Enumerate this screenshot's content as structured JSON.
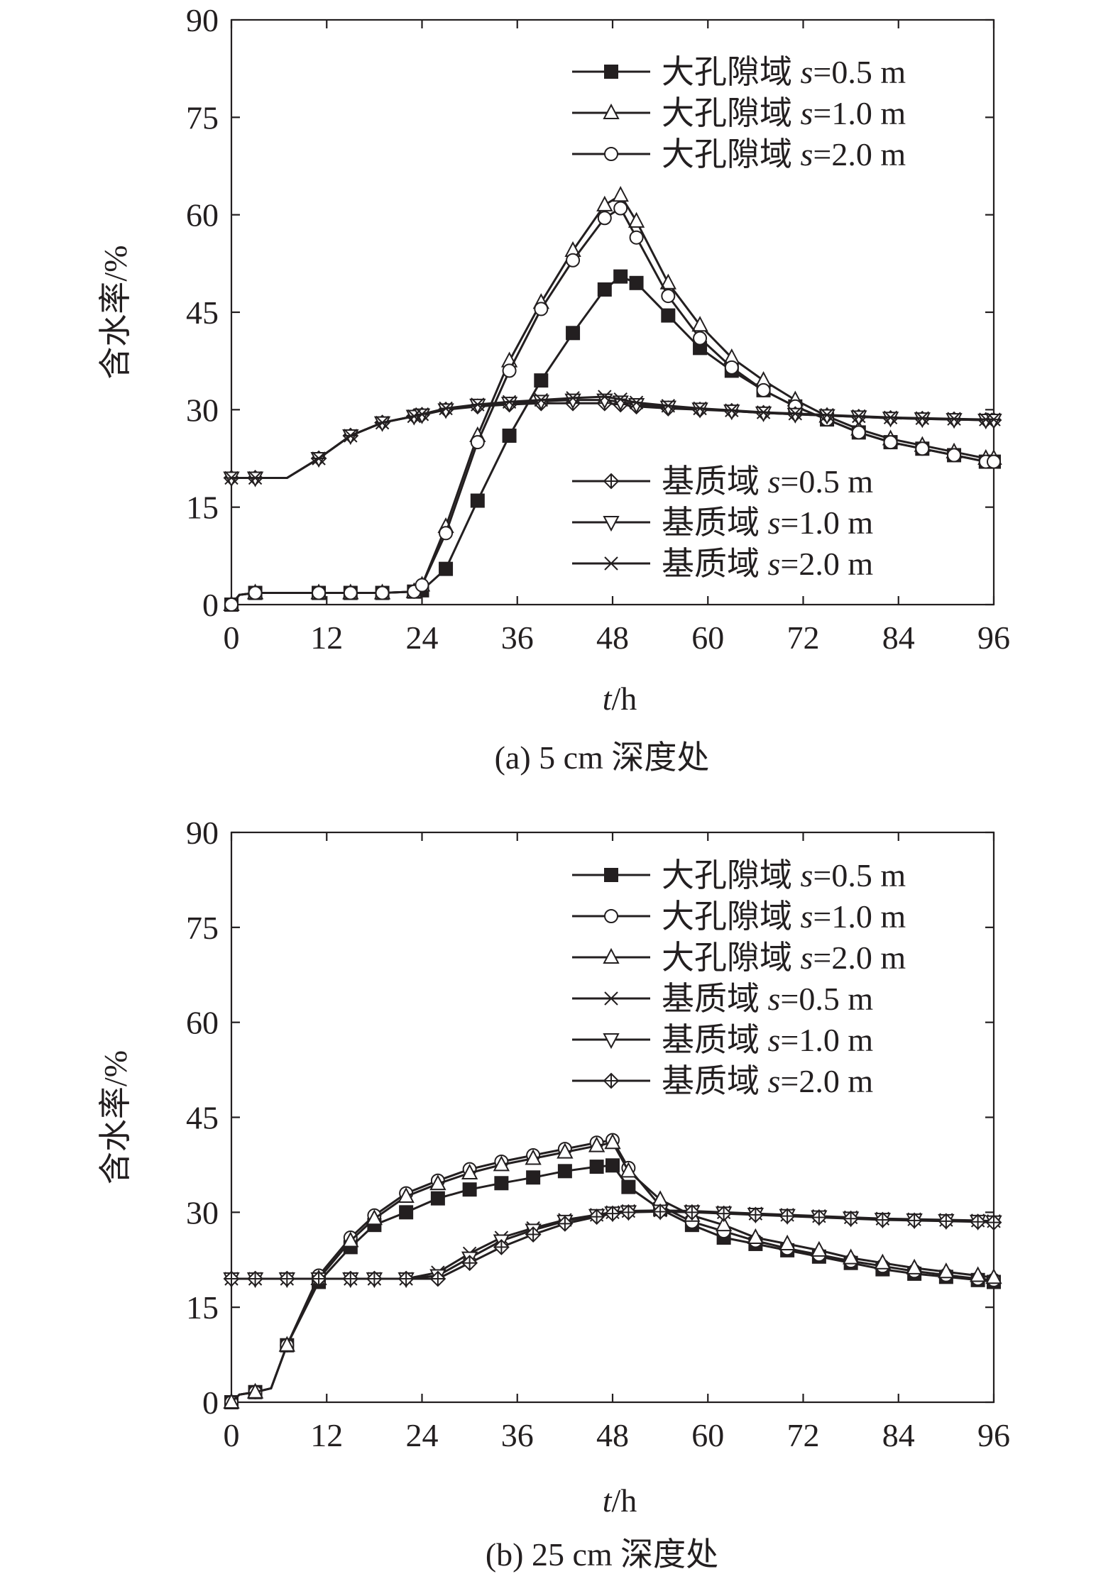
{
  "chart_data": [
    {
      "type": "line",
      "caption": "(a) 5 cm 深度处",
      "xlabel": {
        "italic": "t",
        "rest": "/h"
      },
      "ylabel": "含水率/%",
      "xlim": [
        0,
        96
      ],
      "ylim": [
        0,
        90
      ],
      "xticks": [
        0,
        12,
        24,
        36,
        48,
        60,
        72,
        84,
        96
      ],
      "yticks": [
        0,
        15,
        30,
        45,
        60,
        75,
        90
      ],
      "legends": [
        {
          "position": "top-right",
          "entries": [
            0,
            1,
            2
          ]
        },
        {
          "position": "bottom-right",
          "entries": [
            3,
            4,
            5
          ]
        }
      ],
      "x": [
        0,
        1,
        3,
        7,
        11,
        15,
        19,
        23,
        24,
        27,
        31,
        35,
        39,
        43,
        47,
        49,
        51,
        55,
        59,
        63,
        67,
        71,
        75,
        79,
        83,
        87,
        91,
        95,
        96
      ],
      "series": [
        {
          "name": {
            "prefix": "大孔隙域 ",
            "italic": "s",
            "suffix": "=0.5 m"
          },
          "marker": "filled-square",
          "values": [
            0,
            1.5,
            1.8,
            1.8,
            1.8,
            1.8,
            1.8,
            2.0,
            2.2,
            5.5,
            16,
            26,
            34.5,
            41.8,
            48.5,
            50.5,
            49.5,
            44.5,
            39.5,
            36,
            33,
            30.5,
            28.5,
            26.5,
            25,
            24,
            23,
            22,
            22
          ]
        },
        {
          "name": {
            "prefix": "大孔隙域 ",
            "italic": "s",
            "suffix": "=1.0 m"
          },
          "marker": "open-triangle-up",
          "values": [
            0,
            1.5,
            1.8,
            1.8,
            1.8,
            1.8,
            1.8,
            2.0,
            3,
            12,
            26,
            37.5,
            46.5,
            54.5,
            61.5,
            63,
            59,
            49.5,
            43,
            38,
            34.5,
            31.5,
            29,
            27,
            25.5,
            24.5,
            23.5,
            22.5,
            22.5
          ]
        },
        {
          "name": {
            "prefix": "大孔隙域 ",
            "italic": "s",
            "suffix": "=2.0 m"
          },
          "marker": "open-circle",
          "values": [
            0,
            1.5,
            1.8,
            1.8,
            1.8,
            1.8,
            1.8,
            2.0,
            3,
            11,
            25,
            36,
            45.5,
            53,
            59.5,
            61,
            56.5,
            47.5,
            41,
            36.5,
            33,
            30.5,
            28.5,
            26.5,
            25,
            24,
            23,
            22,
            22
          ]
        },
        {
          "name": {
            "prefix": "基质域 ",
            "italic": "s",
            "suffix": "=0.5 m"
          },
          "marker": "open-diamond-cross",
          "values": [
            19.5,
            19.5,
            19.5,
            19.5,
            22.5,
            26,
            28,
            29,
            29.2,
            30,
            30.5,
            30.8,
            31,
            31,
            31,
            30.8,
            30.5,
            30.2,
            30,
            29.8,
            29.5,
            29.3,
            29.1,
            28.9,
            28.7,
            28.6,
            28.5,
            28.4,
            28.4
          ]
        },
        {
          "name": {
            "prefix": "基质域 ",
            "italic": "s",
            "suffix": "=1.0 m"
          },
          "marker": "open-triangle-down",
          "values": [
            19.5,
            19.5,
            19.5,
            19.5,
            22.5,
            26,
            28,
            29,
            29.2,
            30,
            30.7,
            31,
            31.3,
            31.5,
            31.5,
            31.2,
            30.8,
            30.4,
            30.1,
            29.8,
            29.5,
            29.3,
            29.1,
            28.9,
            28.7,
            28.6,
            28.5,
            28.4,
            28.4
          ]
        },
        {
          "name": {
            "prefix": "基质域 ",
            "italic": "s",
            "suffix": "=2.0 m"
          },
          "marker": "x-star",
          "values": [
            19.5,
            19.5,
            19.5,
            19.5,
            22.5,
            26,
            28,
            29,
            29.3,
            30.2,
            30.8,
            31.2,
            31.5,
            31.8,
            32,
            31.6,
            31.1,
            30.6,
            30.2,
            29.9,
            29.6,
            29.4,
            29.2,
            29,
            28.8,
            28.7,
            28.6,
            28.5,
            28.5
          ]
        }
      ]
    },
    {
      "type": "line",
      "caption": "(b) 25 cm 深度处",
      "xlabel": {
        "italic": "t",
        "rest": "/h"
      },
      "ylabel": "含水率/%",
      "xlim": [
        0,
        96
      ],
      "ylim": [
        0,
        90
      ],
      "xticks": [
        0,
        12,
        24,
        36,
        48,
        60,
        72,
        84,
        96
      ],
      "yticks": [
        0,
        15,
        30,
        45,
        60,
        75,
        90
      ],
      "legends": [
        {
          "position": "top-right",
          "entries": [
            0,
            1,
            2,
            3,
            4,
            5
          ]
        }
      ],
      "x": [
        0,
        1,
        3,
        5,
        7,
        11,
        15,
        18,
        22,
        26,
        30,
        34,
        38,
        42,
        46,
        48,
        50,
        54,
        58,
        62,
        66,
        70,
        74,
        78,
        82,
        86,
        90,
        94,
        96
      ],
      "series": [
        {
          "name": {
            "prefix": "大孔隙域 ",
            "italic": "s",
            "suffix": "=0.5 m"
          },
          "marker": "filled-square",
          "values": [
            0,
            1.2,
            1.6,
            2.2,
            9,
            19,
            24.5,
            28,
            30,
            32.2,
            33.6,
            34.6,
            35.5,
            36.5,
            37.2,
            37.4,
            34,
            30.5,
            28,
            26,
            25,
            24,
            23,
            22,
            21,
            20.3,
            19.8,
            19.3,
            19
          ]
        },
        {
          "name": {
            "prefix": "大孔隙域 ",
            "italic": "s",
            "suffix": "=1.0 m"
          },
          "marker": "open-circle",
          "values": [
            0,
            1.2,
            1.6,
            2.2,
            9,
            20,
            26,
            29.5,
            33,
            35,
            36.8,
            38,
            39,
            40,
            41,
            41.4,
            37,
            31,
            28.5,
            27,
            25.5,
            24.3,
            23.3,
            22.3,
            21.5,
            20.7,
            20.1,
            19.5,
            19.3
          ]
        },
        {
          "name": {
            "prefix": "大孔隙域 ",
            "italic": "s",
            "suffix": "=2.0 m"
          },
          "marker": "open-triangle-up",
          "values": [
            0,
            1.2,
            1.6,
            2.2,
            9,
            19.5,
            25.5,
            29,
            32.5,
            34.5,
            36.2,
            37.5,
            38.5,
            39.5,
            40.5,
            41,
            36.5,
            32,
            29.5,
            28,
            26,
            25,
            24,
            22.8,
            22,
            21.2,
            20.6,
            20,
            19.7
          ]
        },
        {
          "name": {
            "prefix": "基质域 ",
            "italic": "s",
            "suffix": "=0.5 m"
          },
          "marker": "x-star",
          "values": [
            19.5,
            19.5,
            19.5,
            19.5,
            19.5,
            19.5,
            19.5,
            19.5,
            19.5,
            20.5,
            23.5,
            26,
            27.5,
            28.8,
            29.6,
            30,
            30.2,
            30.3,
            30.2,
            30,
            29.8,
            29.6,
            29.4,
            29.2,
            29,
            28.9,
            28.8,
            28.7,
            28.6
          ]
        },
        {
          "name": {
            "prefix": "基质域 ",
            "italic": "s",
            "suffix": "=1.0 m"
          },
          "marker": "open-triangle-down",
          "values": [
            19.5,
            19.5,
            19.5,
            19.5,
            19.5,
            19.5,
            19.5,
            19.5,
            19.5,
            20,
            22.8,
            25.5,
            27.2,
            28.6,
            29.5,
            29.9,
            30.1,
            30.2,
            30.1,
            29.9,
            29.7,
            29.5,
            29.3,
            29.1,
            28.9,
            28.8,
            28.7,
            28.6,
            28.5
          ]
        },
        {
          "name": {
            "prefix": "基质域 ",
            "italic": "s",
            "suffix": "=2.0 m"
          },
          "marker": "open-diamond-cross",
          "values": [
            19.5,
            19.5,
            19.5,
            19.5,
            19.5,
            19.5,
            19.5,
            19.5,
            19.5,
            19.5,
            22,
            24.5,
            26.5,
            28.2,
            29.3,
            29.8,
            30,
            30.1,
            30,
            29.8,
            29.6,
            29.4,
            29.2,
            29,
            28.8,
            28.7,
            28.6,
            28.5,
            28.4
          ]
        }
      ]
    }
  ]
}
